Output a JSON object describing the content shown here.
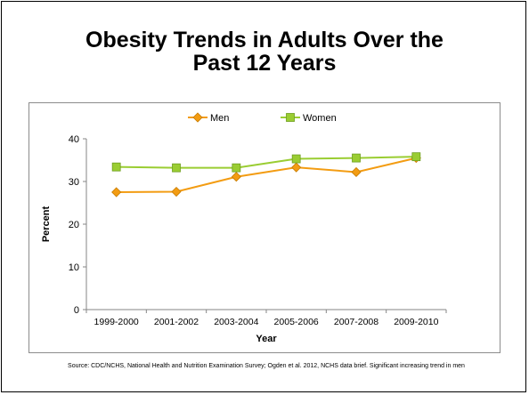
{
  "slide": {
    "title_line1": "Obesity Trends in Adults Over the",
    "title_line2": "Past 12 Years",
    "source": "Source: CDC/NCHS, National Health and Nutrition Examination Survey; Ogden et al. 2012, NCHS data brief. Significant increasing trend in men"
  },
  "chart_data": {
    "type": "line",
    "categories": [
      "1999-2000",
      "2001-2002",
      "2003-2004",
      "2005-2006",
      "2007-2008",
      "2009-2010"
    ],
    "series": [
      {
        "name": "Men",
        "values": [
          27.5,
          27.6,
          31.1,
          33.3,
          32.2,
          35.5
        ],
        "color": "#f39c12",
        "marker": "diamond"
      },
      {
        "name": "Women",
        "values": [
          33.4,
          33.2,
          33.2,
          35.3,
          35.5,
          35.8
        ],
        "color": "#9acd32",
        "marker": "square"
      }
    ],
    "xlabel": "Year",
    "ylabel": "Percent",
    "ylim": [
      0,
      40
    ],
    "yticks": [
      0,
      10,
      20,
      30,
      40
    ],
    "grid": false,
    "legend_position": "top"
  }
}
